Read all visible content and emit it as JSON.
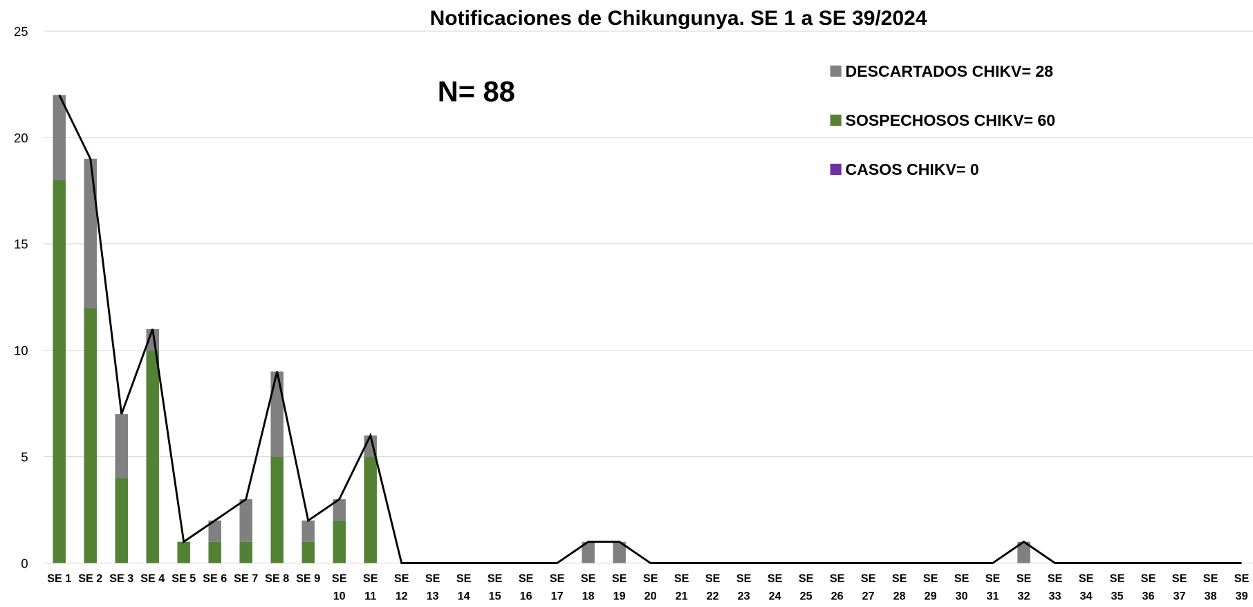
{
  "chart_data": {
    "type": "bar",
    "stacked": true,
    "title": "Notificaciones de Chikungunya. SE  1 a SE 39/2024",
    "annotations": [
      "N= 88"
    ],
    "categories": [
      "SE 1",
      "SE 2",
      "SE 3",
      "SE 4",
      "SE 5",
      "SE 6",
      "SE 7",
      "SE 8",
      "SE 9",
      "SE 10",
      "SE 11",
      "SE 12",
      "SE 13",
      "SE 14",
      "SE 15",
      "SE 16",
      "SE 17",
      "SE 18",
      "SE 19",
      "SE 20",
      "SE 21",
      "SE 22",
      "SE 23",
      "SE 24",
      "SE 25",
      "SE 26",
      "SE 27",
      "SE 28",
      "SE 29",
      "SE 30",
      "SE 31",
      "SE 32",
      "SE 33",
      "SE 34",
      "SE 35",
      "SE 36",
      "SE 37",
      "SE 38",
      "SE 39"
    ],
    "series": [
      {
        "name": "CASOS CHIKV= 0",
        "color": "#7030a0",
        "values": [
          0,
          0,
          0,
          0,
          0,
          0,
          0,
          0,
          0,
          0,
          0,
          0,
          0,
          0,
          0,
          0,
          0,
          0,
          0,
          0,
          0,
          0,
          0,
          0,
          0,
          0,
          0,
          0,
          0,
          0,
          0,
          0,
          0,
          0,
          0,
          0,
          0,
          0,
          0
        ]
      },
      {
        "name": "SOSPECHOSOS CHIKV= 60",
        "color": "#548235",
        "values": [
          18,
          12,
          4,
          10,
          1,
          1,
          1,
          5,
          1,
          2,
          5,
          0,
          0,
          0,
          0,
          0,
          0,
          0,
          0,
          0,
          0,
          0,
          0,
          0,
          0,
          0,
          0,
          0,
          0,
          0,
          0,
          0,
          0,
          0,
          0,
          0,
          0,
          0,
          0
        ]
      },
      {
        "name": "DESCARTADOS CHIKV= 28",
        "color": "#808080",
        "values": [
          4,
          7,
          3,
          1,
          0,
          1,
          2,
          4,
          1,
          1,
          1,
          0,
          0,
          0,
          0,
          0,
          0,
          1,
          1,
          0,
          0,
          0,
          0,
          0,
          0,
          0,
          0,
          0,
          0,
          0,
          0,
          1,
          0,
          0,
          0,
          0,
          0,
          0,
          0
        ]
      },
      {
        "type": "line",
        "color": "#000000",
        "values": [
          22,
          19,
          7,
          11,
          1,
          2,
          3,
          9,
          2,
          3,
          6,
          0,
          0,
          0,
          0,
          0,
          0,
          1,
          1,
          0,
          0,
          0,
          0,
          0,
          0,
          0,
          0,
          0,
          0,
          0,
          0,
          1,
          0,
          0,
          0,
          0,
          0,
          0,
          0
        ]
      }
    ],
    "ylim": [
      0,
      25
    ],
    "yticks": [
      0,
      5,
      10,
      15,
      20,
      25
    ],
    "grid": true,
    "legend": "top-right"
  }
}
